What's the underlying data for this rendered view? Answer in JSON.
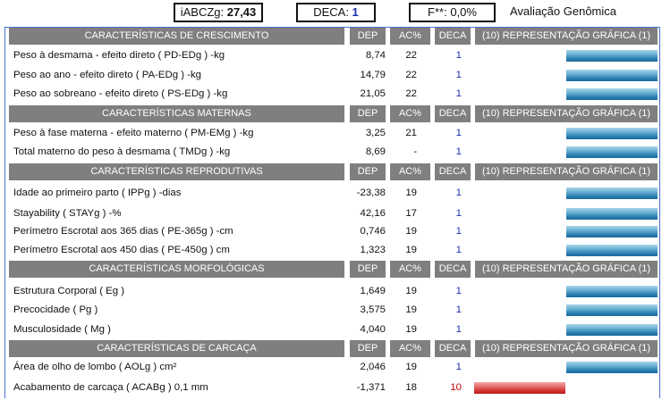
{
  "header": {
    "iabczg_label": "iABCZg: ",
    "iabczg_value": "27,43",
    "deca_label": "DECA: ",
    "deca_value": "1",
    "f_label": "F**: ",
    "f_value": "0,0%",
    "title": "Avaliação Genômica"
  },
  "columns": {
    "dep": "DEP",
    "ac": "AC%",
    "deca": "DECA",
    "graph": "(10) REPRESENTAÇÃO GRÁFICA (1)"
  },
  "colors": {
    "header_bg": "#7f7f7f",
    "frame_border": "#4a6fd6",
    "deca_blue": "#1a2fb0",
    "deca_red": "#c00000",
    "bar_blue": "#2b7fb0",
    "bar_red": "#cf2a2a"
  },
  "sections": [
    {
      "title": "CARACTERÍSTICAS DE CRESCIMENTO",
      "rows": [
        {
          "label": "Peso à desmama - efeito direto ( PD-EDg ) -kg",
          "dep": "8,74",
          "ac": "22",
          "deca": "1",
          "deca_color": "blue",
          "bar": "blue"
        },
        {
          "label": "Peso ao ano - efeito direto ( PA-EDg ) -kg",
          "dep": "14,79",
          "ac": "22",
          "deca": "1",
          "deca_color": "blue",
          "bar": "blue"
        },
        {
          "label": "Peso ao sobreano - efeito direto ( PS-EDg ) -kg",
          "dep": "21,05",
          "ac": "22",
          "deca": "1",
          "deca_color": "blue",
          "bar": "blue"
        }
      ]
    },
    {
      "title": "CARACTERÍSTICAS MATERNAS",
      "rows": [
        {
          "label": "Peso à fase materna - efeito materno ( PM-EMg ) -kg",
          "dep": "3,25",
          "ac": "21",
          "deca": "1",
          "deca_color": "blue",
          "bar": "blue"
        },
        {
          "label": "Total materno do peso à desmama ( TMDg ) -kg",
          "dep": "8,69",
          "ac": "-",
          "deca": "1",
          "deca_color": "blue",
          "bar": "blue"
        }
      ]
    },
    {
      "title": "CARACTERÍSTICAS REPRODUTIVAS",
      "rows": [
        {
          "label": "Idade ao primeiro parto ( IPPg ) -dias",
          "dep": "-23,38",
          "ac": "19",
          "deca": "1",
          "deca_color": "blue",
          "bar": "blue"
        },
        {
          "label": "Stayability ( STAYg ) -%",
          "dep": "42,16",
          "ac": "17",
          "deca": "1",
          "deca_color": "blue",
          "bar": "blue"
        },
        {
          "label": "Perímetro Escrotal aos 365 dias ( PE-365g ) -cm",
          "dep": "0,746",
          "ac": "19",
          "deca": "1",
          "deca_color": "blue",
          "bar": "blue"
        },
        {
          "label": "Perímetro Escrotal aos 450 dias ( PE-450g ) cm",
          "dep": "1,323",
          "ac": "19",
          "deca": "1",
          "deca_color": "blue",
          "bar": "blue"
        }
      ]
    },
    {
      "title": "CARACTERÍSTICAS MORFOLÓGICAS",
      "rows": [
        {
          "label": "Estrutura Corporal ( Eg )",
          "dep": "1,649",
          "ac": "19",
          "deca": "1",
          "deca_color": "blue",
          "bar": "blue"
        },
        {
          "label": "Precocidade ( Pg )",
          "dep": "3,575",
          "ac": "19",
          "deca": "1",
          "deca_color": "blue",
          "bar": "blue"
        },
        {
          "label": "Musculosidade ( Mg )",
          "dep": "4,040",
          "ac": "19",
          "deca": "1",
          "deca_color": "blue",
          "bar": "blue"
        }
      ]
    },
    {
      "title": "CARACTERÍSTICAS DE CARCAÇA",
      "rows": [
        {
          "label": "Área de olho de lombo ( AOLg ) cm²",
          "dep": "2,046",
          "ac": "19",
          "deca": "1",
          "deca_color": "blue",
          "bar": "blue"
        },
        {
          "label": "Acabamento de carcaça ( ACABg ) 0,1 mm",
          "dep": "-1,371",
          "ac": "18",
          "deca": "10",
          "deca_color": "red",
          "bar": "red"
        }
      ]
    }
  ]
}
